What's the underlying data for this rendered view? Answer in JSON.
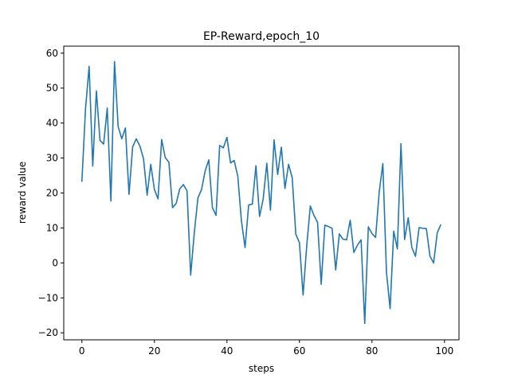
{
  "chart_data": {
    "type": "line",
    "title": "EP-Reward,epoch_10",
    "xlabel": "steps",
    "ylabel": "reward value",
    "xlim": [
      -5,
      104
    ],
    "ylim": [
      -22,
      62
    ],
    "xticks": [
      0,
      20,
      40,
      60,
      80,
      100
    ],
    "yticks": [
      -20,
      -10,
      0,
      10,
      20,
      30,
      40,
      50,
      60
    ],
    "xtick_labels": [
      "0",
      "20",
      "40",
      "60",
      "80",
      "100"
    ],
    "ytick_labels": [
      "−20",
      "−10",
      "0",
      "10",
      "20",
      "30",
      "40",
      "50",
      "60"
    ],
    "grid": false,
    "series": [
      {
        "color": "#1f77b4",
        "x": [
          0,
          1,
          2,
          3,
          4,
          5,
          6,
          7,
          8,
          9,
          10,
          11,
          12,
          13,
          14,
          15,
          16,
          17,
          18,
          19,
          20,
          21,
          22,
          23,
          24,
          25,
          26,
          27,
          28,
          29,
          30,
          31,
          32,
          33,
          34,
          35,
          36,
          37,
          38,
          39,
          40,
          41,
          42,
          43,
          44,
          45,
          46,
          47,
          48,
          49,
          50,
          51,
          52,
          53,
          54,
          55,
          56,
          57,
          58,
          59,
          60,
          61,
          62,
          63,
          64,
          65,
          66,
          67,
          68,
          69,
          70,
          71,
          72,
          73,
          74,
          75,
          76,
          77,
          78,
          79,
          80,
          81,
          82,
          83,
          84,
          85,
          86,
          87,
          88,
          89,
          90,
          91,
          92,
          93,
          94,
          95,
          96,
          97,
          98,
          99
        ],
        "values": [
          23.2,
          44.0,
          56.2,
          27.7,
          49.2,
          35.0,
          34.0,
          44.3,
          17.7,
          57.6,
          39.0,
          35.5,
          38.6,
          19.6,
          33.2,
          35.5,
          33.4,
          29.8,
          19.4,
          28.2,
          21.0,
          18.3,
          35.3,
          30.1,
          28.8,
          15.8,
          17.0,
          21.2,
          22.4,
          20.6,
          -3.5,
          8.6,
          18.6,
          21.0,
          26.3,
          29.5,
          15.8,
          13.6,
          33.6,
          32.9,
          35.9,
          28.6,
          29.3,
          24.8,
          12.0,
          4.4,
          16.6,
          16.8,
          27.8,
          13.3,
          18.3,
          28.5,
          15.1,
          35.2,
          25.3,
          33.1,
          21.3,
          28.2,
          24.4,
          8.2,
          5.8,
          -9.2,
          4.8,
          16.3,
          13.6,
          11.6,
          -6.1,
          10.8,
          10.4,
          9.9,
          -2.0,
          8.3,
          6.8,
          6.6,
          12.2,
          3.0,
          5.1,
          6.6,
          -17.3,
          10.3,
          8.4,
          7.3,
          20.3,
          28.4,
          -2.7,
          -13.1,
          9.1,
          4.0,
          34.1,
          6.7,
          12.9,
          4.4,
          1.9,
          10.1,
          9.9,
          9.8,
          1.9,
          0.0,
          8.6,
          11.0
        ]
      }
    ]
  }
}
